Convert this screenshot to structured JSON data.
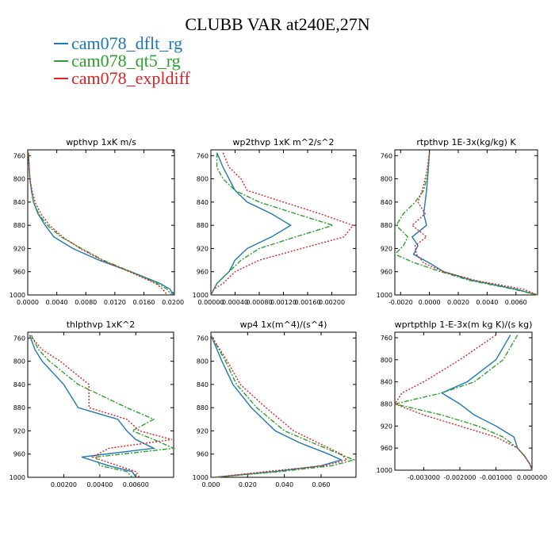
{
  "title": "CLUBB VAR at240E,27N",
  "legend": [
    {
      "label": "cam078_dflt_rg",
      "color": "#1f77b4",
      "style": "solid"
    },
    {
      "label": "cam078_qt5_rg",
      "color": "#2ca02c",
      "style": "dashdot"
    },
    {
      "label": "cam078_expldiff",
      "color": "#d62728",
      "style": "dotted"
    }
  ],
  "chart_data": [
    {
      "type": "line",
      "title": "wpthvp   1xK m/s",
      "ylim": [
        1000,
        750
      ],
      "xlim": [
        0,
        0.0202
      ],
      "yticks": [
        760,
        800,
        840,
        880,
        920,
        960,
        1000
      ],
      "xticks": [
        "0.0000",
        "0.0040",
        "0.0080",
        "0.0120",
        "0.0160",
        "0.0200"
      ],
      "xtick_values": [
        0,
        0.004,
        0.008,
        0.012,
        0.016,
        0.02
      ],
      "levels": [
        755,
        780,
        800,
        820,
        840,
        860,
        880,
        900,
        920,
        940,
        960,
        980,
        990,
        1000
      ],
      "series": [
        {
          "name": "cam078_dflt_rg",
          "values": [
            0.0001,
            0.0002,
            0.0003,
            0.0005,
            0.0008,
            0.0014,
            0.0024,
            0.0036,
            0.0062,
            0.0098,
            0.0142,
            0.0182,
            0.0196,
            0.02
          ]
        },
        {
          "name": "cam078_qt5_rg",
          "values": [
            0.0001,
            0.0002,
            0.0003,
            0.0005,
            0.0008,
            0.0015,
            0.0027,
            0.0046,
            0.0074,
            0.0104,
            0.0142,
            0.0178,
            0.0192,
            0.0198
          ]
        },
        {
          "name": "cam078_expldiff",
          "values": [
            0.0001,
            0.0002,
            0.0003,
            0.0006,
            0.001,
            0.0018,
            0.003,
            0.0048,
            0.0072,
            0.0102,
            0.014,
            0.0176,
            0.0186,
            0.0192
          ]
        }
      ]
    },
    {
      "type": "line",
      "title": "wp2thvp   1xK m^2/s^2",
      "ylim": [
        1000,
        750
      ],
      "xlim": [
        0,
        0.0024
      ],
      "yticks": [
        760,
        800,
        840,
        880,
        920,
        960,
        1000
      ],
      "xticks": [
        "0.00000",
        "0.00040",
        "0.00080",
        "0.00120",
        "0.00160",
        "0.00200"
      ],
      "xtick_values": [
        0,
        0.0004,
        0.0008,
        0.0012,
        0.0016,
        0.002
      ],
      "levels": [
        755,
        780,
        800,
        820,
        840,
        860,
        880,
        900,
        920,
        940,
        960,
        980,
        990,
        1000
      ],
      "series": [
        {
          "name": "cam078_dflt_rg",
          "values": [
            0.0001,
            0.0002,
            0.0003,
            0.0004,
            0.0006,
            0.001,
            0.00132,
            0.001,
            0.0006,
            0.0004,
            0.0003,
            0.0001,
            5e-05,
            0.0
          ]
        },
        {
          "name": "cam078_qt5_rg",
          "values": [
            0.0001,
            0.0001,
            0.0002,
            0.0004,
            0.0008,
            0.0014,
            0.00202,
            0.0014,
            0.0008,
            0.0005,
            0.0003,
            0.0001,
            5e-05,
            0.0
          ]
        },
        {
          "name": "cam078_expldiff",
          "values": [
            0.0002,
            0.0003,
            0.0005,
            0.0006,
            0.0012,
            0.0018,
            0.00235,
            0.0022,
            0.0015,
            0.0008,
            0.0004,
            0.0002,
            5e-05,
            0.0
          ]
        }
      ]
    },
    {
      "type": "line",
      "title": "rtpthvp   1E-3x(kg/kg) K",
      "ylim": [
        1000,
        750
      ],
      "xlim": [
        -0.0024,
        0.0075
      ],
      "yticks": [
        760,
        800,
        840,
        880,
        920,
        960,
        1000
      ],
      "xticks": [
        "-0.0020",
        "0.0000",
        "0.0020",
        "0.0040",
        "0.0060"
      ],
      "xtick_values": [
        -0.002,
        0,
        0.002,
        0.004,
        0.006
      ],
      "levels": [
        755,
        790,
        820,
        840,
        860,
        880,
        900,
        915,
        930,
        945,
        960,
        975,
        990,
        1000
      ],
      "series": [
        {
          "name": "cam078_dflt_rg",
          "values": [
            0.0,
            -0.0001,
            -0.0002,
            -0.0003,
            -0.0004,
            -0.0002,
            -0.0012,
            -0.0008,
            -0.0011,
            0.0,
            0.001,
            0.003,
            0.006,
            0.0075
          ]
        },
        {
          "name": "cam078_qt5_rg",
          "values": [
            0.0,
            -0.0001,
            -0.0004,
            -0.001,
            -0.0018,
            -0.0023,
            -0.0015,
            -0.0018,
            -0.0024,
            -0.001,
            0.0008,
            0.0028,
            0.0058,
            0.0075
          ]
        },
        {
          "name": "cam078_expldiff",
          "values": [
            0.0,
            -0.0002,
            -0.0005,
            -0.0008,
            -0.0003,
            -0.0012,
            -0.0002,
            -0.001,
            -0.0009,
            -0.0004,
            0.001,
            0.0032,
            0.0065,
            0.0075
          ]
        }
      ]
    },
    {
      "type": "line",
      "title": "thlpthvp   1xK^2",
      "ylim": [
        1000,
        750
      ],
      "xlim": [
        0,
        0.0081
      ],
      "yticks": [
        760,
        800,
        840,
        880,
        920,
        960,
        1000
      ],
      "xticks": [
        "0.00200",
        "0.00400",
        "0.00600"
      ],
      "xtick_values": [
        0.002,
        0.004,
        0.006
      ],
      "levels": [
        755,
        780,
        800,
        840,
        880,
        900,
        920,
        935,
        950,
        965,
        980,
        990,
        1000
      ],
      "series": [
        {
          "name": "cam078_dflt_rg",
          "values": [
            0.0001,
            0.0004,
            0.0008,
            0.002,
            0.0028,
            0.005,
            0.0055,
            0.006,
            0.007,
            0.003,
            0.0045,
            0.0058,
            0.006
          ]
        },
        {
          "name": "cam078_qt5_rg",
          "values": [
            0.0002,
            0.0006,
            0.0012,
            0.0028,
            0.0055,
            0.007,
            0.0058,
            0.007,
            0.0081,
            0.0038,
            0.004,
            0.0055,
            0.0058
          ]
        },
        {
          "name": "cam078_expldiff",
          "values": [
            0.0001,
            0.0008,
            0.0018,
            0.0034,
            0.0034,
            0.0055,
            0.0062,
            0.008,
            0.0045,
            0.0036,
            0.005,
            0.006,
            0.0062
          ]
        }
      ]
    },
    {
      "type": "line",
      "title": "wp4   1x(m^4)/(s^4)",
      "ylim": [
        1000,
        750
      ],
      "xlim": [
        0,
        0.079
      ],
      "yticks": [
        760,
        800,
        840,
        880,
        920,
        960,
        1000
      ],
      "xticks": [
        "0.000",
        "0.020",
        "0.040",
        "0.060"
      ],
      "xtick_values": [
        0,
        0.02,
        0.04,
        0.06
      ],
      "levels": [
        755,
        800,
        840,
        880,
        920,
        940,
        960,
        970,
        980,
        990,
        1000
      ],
      "series": [
        {
          "name": "cam078_dflt_rg",
          "values": [
            0.0,
            0.006,
            0.012,
            0.022,
            0.035,
            0.048,
            0.064,
            0.071,
            0.06,
            0.035,
            0.002
          ]
        },
        {
          "name": "cam078_qt5_rg",
          "values": [
            0.0,
            0.008,
            0.014,
            0.025,
            0.04,
            0.055,
            0.07,
            0.078,
            0.066,
            0.038,
            0.002
          ]
        },
        {
          "name": "cam078_expldiff",
          "values": [
            0.0,
            0.009,
            0.016,
            0.03,
            0.045,
            0.058,
            0.071,
            0.074,
            0.062,
            0.03,
            0.002
          ]
        }
      ]
    },
    {
      "type": "line",
      "title": "wprtpthlp   1-E-3x(m kg K)/(s kg)",
      "ylim": [
        1000,
        750
      ],
      "xlim": [
        -0.0038,
        0.0
      ],
      "yticks": [
        760,
        800,
        840,
        880,
        920,
        960,
        1000
      ],
      "xticks": [
        "-0.003000",
        "-0.002000",
        "-0.001000",
        "0.000000"
      ],
      "xtick_values": [
        -0.003,
        -0.002,
        -0.001,
        0
      ],
      "levels": [
        755,
        800,
        840,
        860,
        880,
        900,
        920,
        940,
        960,
        975,
        990,
        1000
      ],
      "series": [
        {
          "name": "cam078_dflt_rg",
          "values": [
            -0.0006,
            -0.001,
            -0.0018,
            -0.0025,
            -0.002,
            -0.0016,
            -0.001,
            -0.0005,
            -0.0004,
            -0.0002,
            -5e-05,
            0.0
          ]
        },
        {
          "name": "cam078_qt5_rg",
          "values": [
            -0.0004,
            -0.0008,
            -0.0016,
            -0.0025,
            -0.0038,
            -0.0025,
            -0.0015,
            -0.0008,
            -0.0004,
            -0.0002,
            -5e-05,
            0.0
          ]
        },
        {
          "name": "cam078_expldiff",
          "values": [
            -0.001,
            -0.002,
            -0.003,
            -0.0036,
            -0.0038,
            -0.003,
            -0.002,
            -0.001,
            -0.0004,
            -0.0002,
            -5e-05,
            0.0
          ]
        }
      ]
    }
  ]
}
